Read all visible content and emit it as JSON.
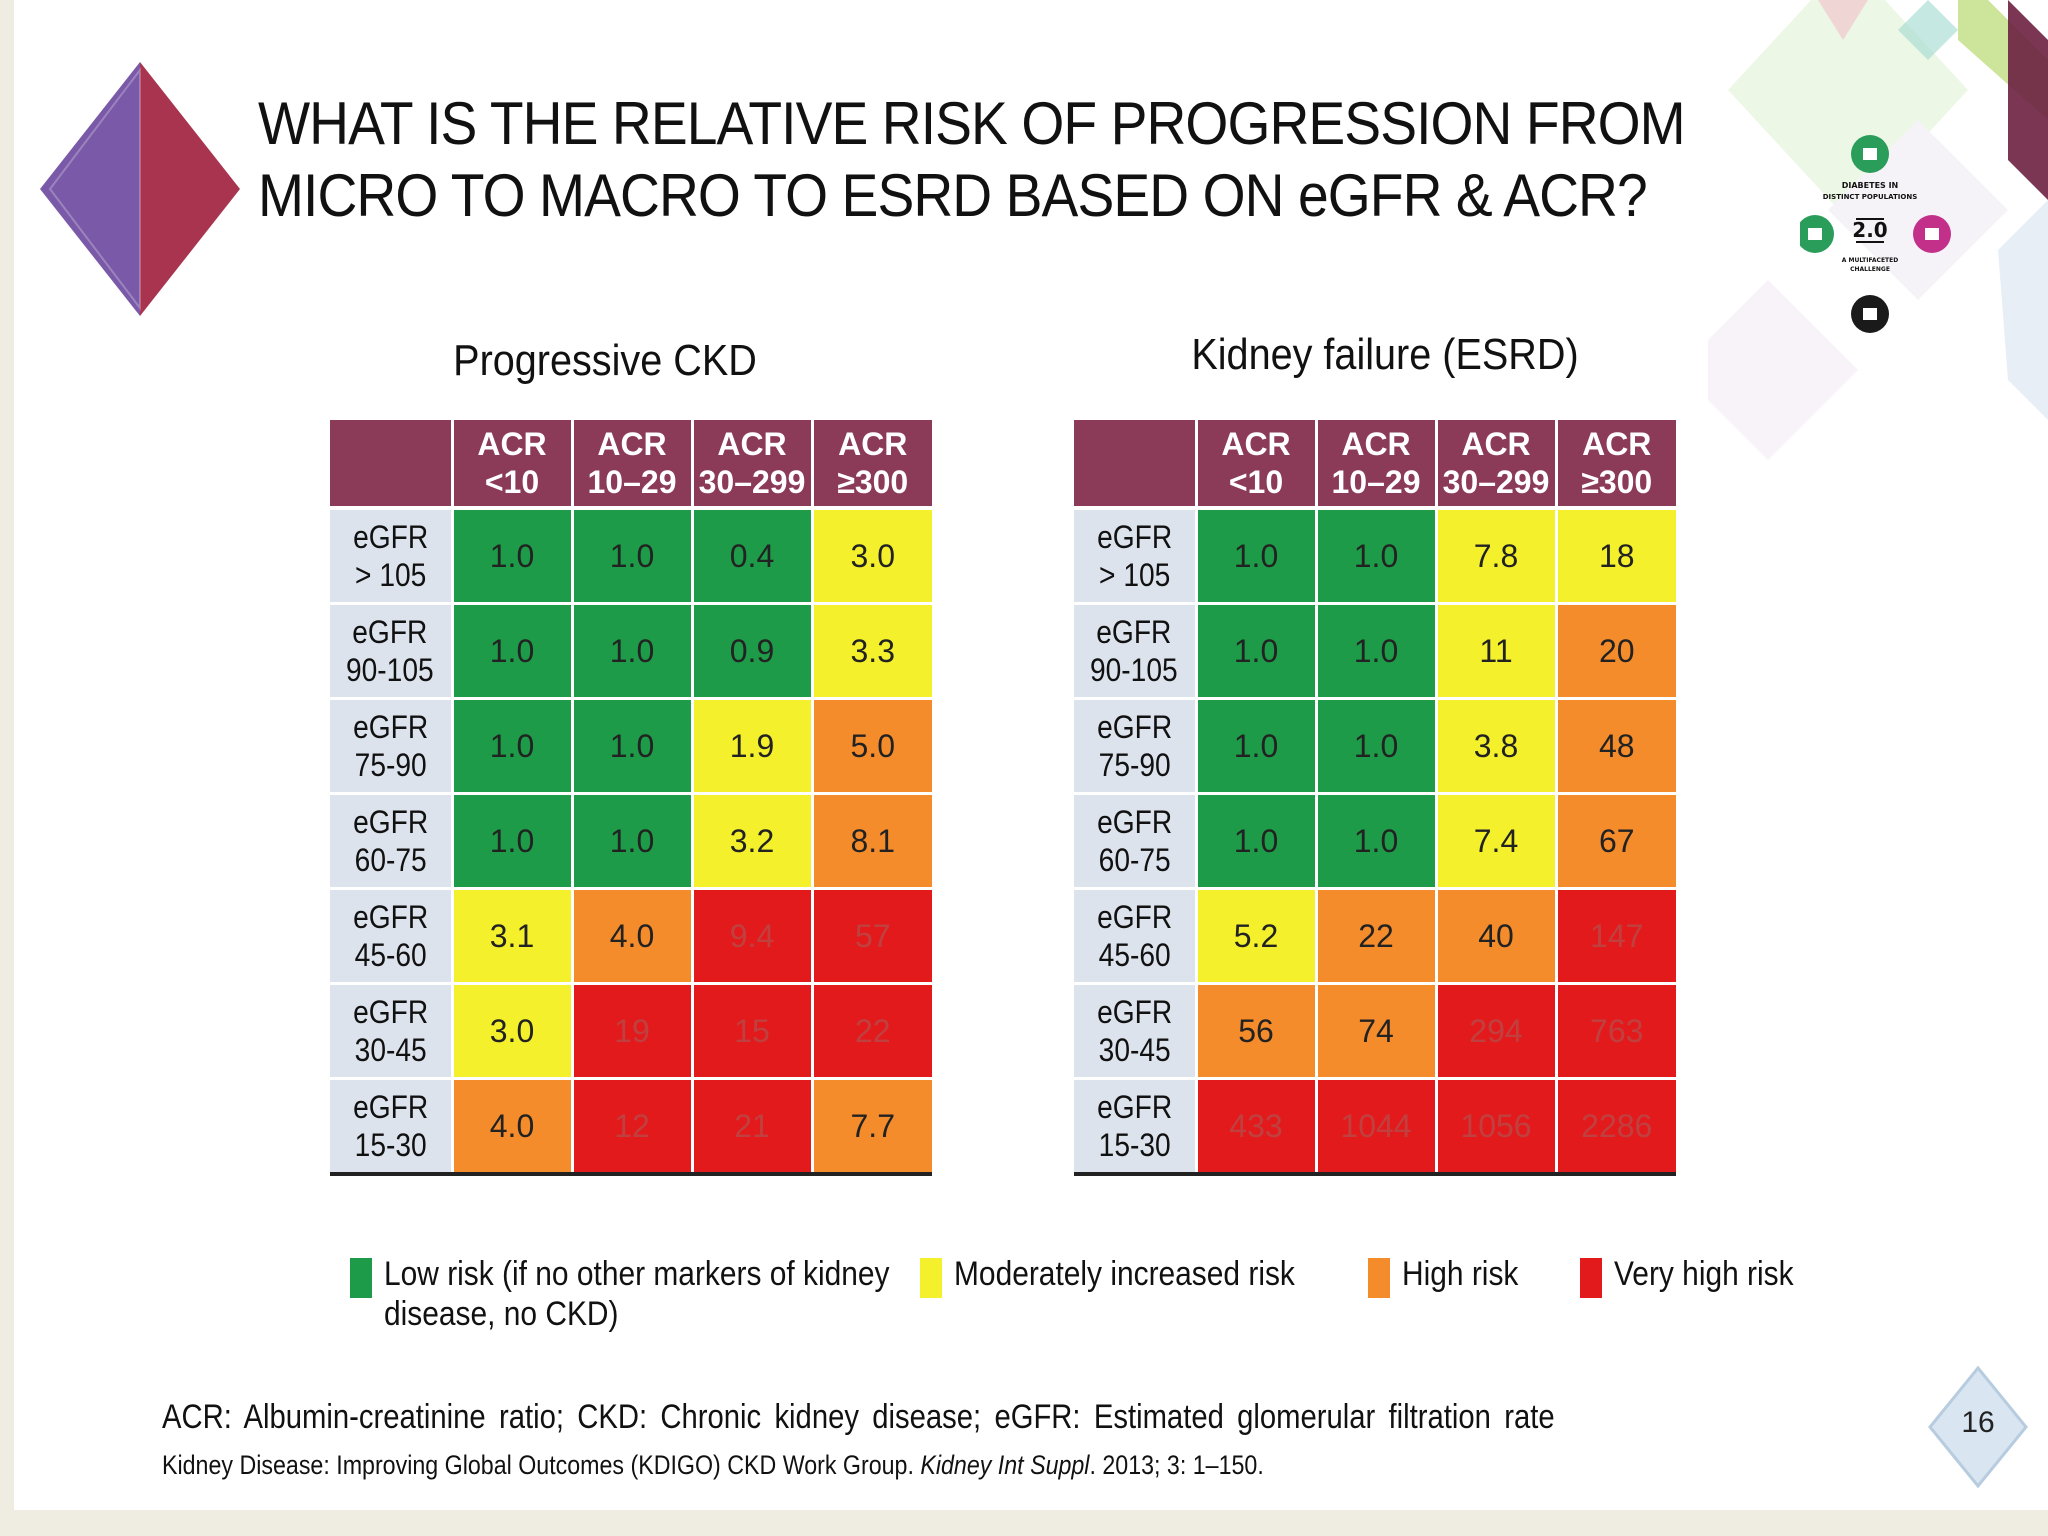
{
  "title": {
    "line1": "WHAT IS THE RELATIVE  RISK OF PROGRESSION FROM",
    "line2": "MICRO TO MACRO TO ESRD BASED ON eGFR & ACR?"
  },
  "logo": {
    "line1": "DIABETES IN",
    "line2": "DISTINCT POPULATIONS",
    "version": "2.0",
    "line3": "A MULTIFACETED",
    "line4": "CHALLENGE"
  },
  "colors": {
    "low": "#1e9b48",
    "moderate": "#f4f02c",
    "high": "#f58c2c",
    "very_high": "#e31a1c",
    "header": "#8b3a58",
    "row_header": "#dde3ed"
  },
  "column_headers": [
    {
      "line1": "ACR",
      "line2": "<10"
    },
    {
      "line1": "ACR",
      "line2": "10–29"
    },
    {
      "line1": "ACR",
      "line2": "30–299"
    },
    {
      "line1": "ACR",
      "line2": "≥300"
    }
  ],
  "row_headers": [
    {
      "line1": "eGFR",
      "line2": "> 105"
    },
    {
      "line1": "eGFR",
      "line2": "90-105"
    },
    {
      "line1": "eGFR",
      "line2": "75-90"
    },
    {
      "line1": "eGFR",
      "line2": "60-75"
    },
    {
      "line1": "eGFR",
      "line2": "45-60"
    },
    {
      "line1": "eGFR",
      "line2": "30-45"
    },
    {
      "line1": "eGFR",
      "line2": "15-30"
    }
  ],
  "tables": [
    {
      "title": "Progressive CKD",
      "rows": [
        [
          {
            "v": "1.0",
            "r": "low"
          },
          {
            "v": "1.0",
            "r": "low"
          },
          {
            "v": "0.4",
            "r": "low"
          },
          {
            "v": "3.0",
            "r": "moderate"
          }
        ],
        [
          {
            "v": "1.0",
            "r": "low"
          },
          {
            "v": "1.0",
            "r": "low"
          },
          {
            "v": "0.9",
            "r": "low"
          },
          {
            "v": "3.3",
            "r": "moderate"
          }
        ],
        [
          {
            "v": "1.0",
            "r": "low"
          },
          {
            "v": "1.0",
            "r": "low"
          },
          {
            "v": "1.9",
            "r": "moderate"
          },
          {
            "v": "5.0",
            "r": "high"
          }
        ],
        [
          {
            "v": "1.0",
            "r": "low"
          },
          {
            "v": "1.0",
            "r": "low"
          },
          {
            "v": "3.2",
            "r": "moderate"
          },
          {
            "v": "8.1",
            "r": "high"
          }
        ],
        [
          {
            "v": "3.1",
            "r": "moderate"
          },
          {
            "v": "4.0",
            "r": "high"
          },
          {
            "v": "9.4",
            "r": "very_high"
          },
          {
            "v": "57",
            "r": "very_high"
          }
        ],
        [
          {
            "v": "3.0",
            "r": "moderate"
          },
          {
            "v": "19",
            "r": "very_high"
          },
          {
            "v": "15",
            "r": "very_high"
          },
          {
            "v": "22",
            "r": "very_high"
          }
        ],
        [
          {
            "v": "4.0",
            "r": "high"
          },
          {
            "v": "12",
            "r": "very_high"
          },
          {
            "v": "21",
            "r": "very_high"
          },
          {
            "v": "7.7",
            "r": "high"
          }
        ]
      ]
    },
    {
      "title": "Kidney failure (ESRD)",
      "rows": [
        [
          {
            "v": "1.0",
            "r": "low"
          },
          {
            "v": "1.0",
            "r": "low"
          },
          {
            "v": "7.8",
            "r": "moderate"
          },
          {
            "v": "18",
            "r": "moderate"
          }
        ],
        [
          {
            "v": "1.0",
            "r": "low"
          },
          {
            "v": "1.0",
            "r": "low"
          },
          {
            "v": "11",
            "r": "moderate"
          },
          {
            "v": "20",
            "r": "high"
          }
        ],
        [
          {
            "v": "1.0",
            "r": "low"
          },
          {
            "v": "1.0",
            "r": "low"
          },
          {
            "v": "3.8",
            "r": "moderate"
          },
          {
            "v": "48",
            "r": "high"
          }
        ],
        [
          {
            "v": "1.0",
            "r": "low"
          },
          {
            "v": "1.0",
            "r": "low"
          },
          {
            "v": "7.4",
            "r": "moderate"
          },
          {
            "v": "67",
            "r": "high"
          }
        ],
        [
          {
            "v": "5.2",
            "r": "moderate"
          },
          {
            "v": "22",
            "r": "high"
          },
          {
            "v": "40",
            "r": "high"
          },
          {
            "v": "147",
            "r": "very_high"
          }
        ],
        [
          {
            "v": "56",
            "r": "high"
          },
          {
            "v": "74",
            "r": "high"
          },
          {
            "v": "294",
            "r": "very_high"
          },
          {
            "v": "763",
            "r": "very_high"
          }
        ],
        [
          {
            "v": "433",
            "r": "very_high"
          },
          {
            "v": "1044",
            "r": "very_high"
          },
          {
            "v": "1056",
            "r": "very_high"
          },
          {
            "v": "2286",
            "r": "very_high"
          }
        ]
      ]
    }
  ],
  "legend": [
    {
      "risk": "low",
      "label_line1": "Low risk (if no other markers of kidney",
      "label_line2": "disease, no CKD)"
    },
    {
      "risk": "moderate",
      "label_line1": "Moderately increased risk",
      "label_line2": ""
    },
    {
      "risk": "high",
      "label_line1": "High risk",
      "label_line2": ""
    },
    {
      "risk": "very_high",
      "label_line1": "Very high risk",
      "label_line2": ""
    }
  ],
  "footnote": {
    "abbreviations": "ACR: Albumin-creatinine  ratio; CKD: Chronic  kidney disease; eGFR: Estimated glomerular  filtration  rate",
    "reference_prefix": "Kidney Disease: Improving Global Outcomes (KDIGO)  CKD Work Group. ",
    "reference_journal": "Kidney Int Suppl",
    "reference_suffix": ". 2013; 3: 1–150."
  },
  "page_number": "16"
}
